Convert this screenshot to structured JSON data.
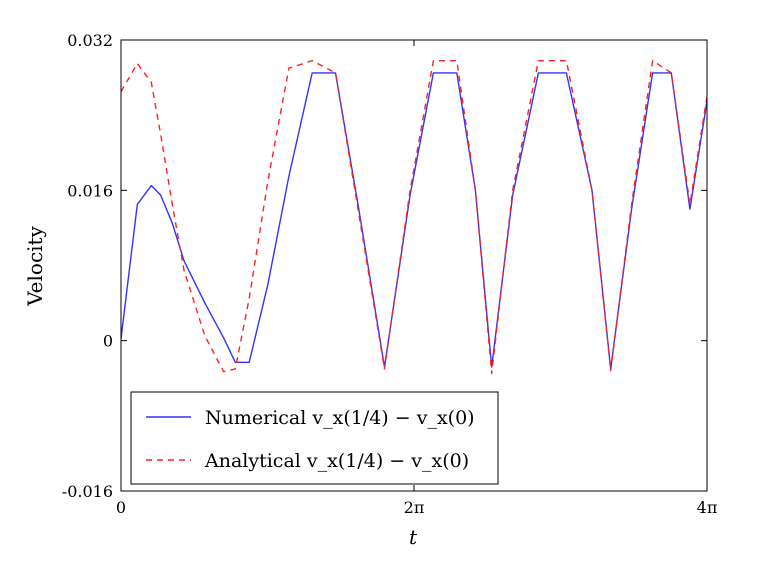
{
  "chart_data": {
    "type": "line",
    "title": "",
    "xlabel": "t",
    "ylabel": "Velocity",
    "xlim": [
      0,
      12.566
    ],
    "ylim": [
      -0.016,
      0.032
    ],
    "grid": false,
    "legend_position": "bottom-left",
    "x_ticks": [
      {
        "value": 0,
        "label": "0"
      },
      {
        "value": 6.283,
        "label": "2π"
      },
      {
        "value": 12.566,
        "label": "4π"
      }
    ],
    "y_ticks": [
      {
        "value": 0.032,
        "label": "0.032"
      },
      {
        "value": 0.016,
        "label": "0.016"
      },
      {
        "value": 0,
        "label": "0"
      },
      {
        "value": -0.016,
        "label": "-0.016"
      }
    ],
    "series": [
      {
        "name": "Numerical v_x(1/4) − v_x(0)",
        "legend_label": "Numerical v_x(1/4) − v_x(0)",
        "color": "#3333ff",
        "style": "solid",
        "x": [
          0,
          0.35,
          0.65,
          0.85,
          1.1,
          1.35,
          1.8,
          2.2,
          2.45,
          2.75,
          3.15,
          3.6,
          4.1,
          4.6,
          5.1,
          5.65,
          6.2,
          6.7,
          7.2,
          7.6,
          7.95,
          8.4,
          8.95,
          9.55,
          10.1,
          10.5,
          10.95,
          11.4,
          11.8,
          12.2,
          12.566
        ],
        "y": [
          0.0002,
          0.0145,
          0.0165,
          0.0155,
          0.0125,
          0.0085,
          0.004,
          0.0003,
          -0.0023,
          -0.0023,
          0.006,
          0.0175,
          0.0285,
          0.0285,
          0.014,
          -0.0028,
          0.0155,
          0.0285,
          0.0285,
          0.016,
          -0.0028,
          0.0155,
          0.0285,
          0.0285,
          0.016,
          -0.003,
          0.014,
          0.0285,
          0.0285,
          0.014,
          0.0255
        ]
      },
      {
        "name": "Analytical v_x(1/4) − v_x(0)",
        "legend_label": "Analytical v_x(1/4) − v_x(0)",
        "color": "#ff2222",
        "style": "dashed",
        "x": [
          0,
          0.35,
          0.65,
          0.85,
          1.1,
          1.35,
          1.8,
          2.2,
          2.45,
          2.75,
          3.15,
          3.6,
          4.1,
          4.6,
          5.1,
          5.65,
          6.2,
          6.7,
          7.2,
          7.6,
          7.95,
          8.4,
          8.95,
          9.55,
          10.1,
          10.5,
          10.95,
          11.4,
          11.8,
          12.2,
          12.566
        ],
        "y": [
          0.0265,
          0.0295,
          0.0275,
          0.022,
          0.0145,
          0.0075,
          0.0005,
          -0.0033,
          -0.003,
          0.0045,
          0.017,
          0.029,
          0.0298,
          0.0285,
          0.0135,
          -0.003,
          0.016,
          0.0298,
          0.0298,
          0.016,
          -0.0035,
          0.016,
          0.0298,
          0.0298,
          0.016,
          -0.0032,
          0.0145,
          0.0298,
          0.0285,
          0.0145,
          0.026
        ]
      }
    ]
  }
}
